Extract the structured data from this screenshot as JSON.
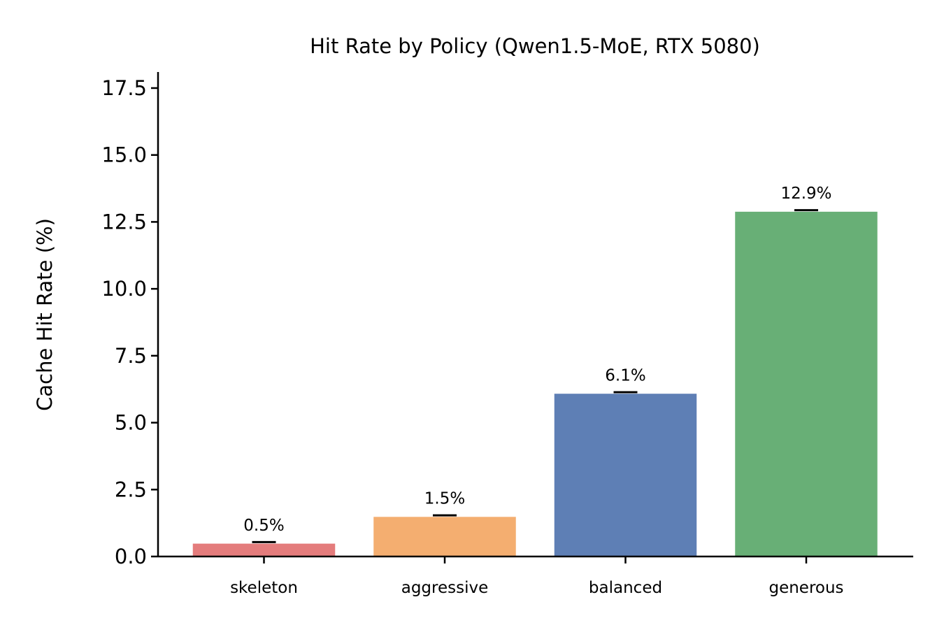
{
  "chart_data": {
    "type": "bar",
    "title": "Hit Rate by Policy (Qwen1.5-MoE, RTX 5080)",
    "xlabel": "",
    "ylabel": "Cache Hit Rate (%)",
    "categories": [
      "skeleton",
      "aggressive",
      "balanced",
      "generous"
    ],
    "values": [
      0.5,
      1.5,
      6.1,
      12.9
    ],
    "value_labels": [
      "0.5%",
      "1.5%",
      "6.1%",
      "12.9%"
    ],
    "colors": [
      "#e47c7c",
      "#f4ae70",
      "#5e7fb5",
      "#68af76"
    ],
    "error_bars": true,
    "ylim": [
      0,
      18.1
    ],
    "yticks": [
      0.0,
      2.5,
      5.0,
      7.5,
      10.0,
      12.5,
      15.0,
      17.5
    ],
    "ytick_labels": [
      "0.0",
      "2.5",
      "5.0",
      "7.5",
      "10.0",
      "12.5",
      "15.0",
      "17.5"
    ],
    "grid": false,
    "legend": "none"
  }
}
